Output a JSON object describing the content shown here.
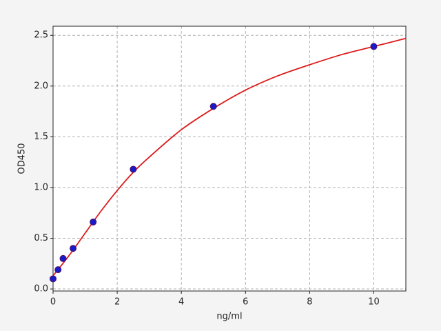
{
  "chart_data": {
    "type": "scatter",
    "xlabel": "ng/ml",
    "ylabel": "OD450",
    "xlim": [
      0,
      11
    ],
    "ylim": [
      -0.02,
      2.59
    ],
    "xticks": [
      0,
      2,
      4,
      6,
      8,
      10
    ],
    "yticks": [
      {
        "value": 0,
        "label": "0.0"
      },
      0.5,
      {
        "value": 1,
        "label": "1.0"
      },
      1.5,
      {
        "value": 2,
        "label": "2.0"
      },
      2.5
    ],
    "grid": true,
    "series": [
      {
        "type": "line",
        "color": "#dd1a1a",
        "x": [
          0,
          0.5,
          1,
          1.5,
          2,
          2.5,
          3,
          4,
          5,
          6,
          7,
          8,
          9,
          10,
          11
        ],
        "values": [
          0.13,
          0.33,
          0.55,
          0.77,
          0.97,
          1.15,
          1.3,
          1.57,
          1.78,
          1.96,
          2.1,
          2.21,
          2.31,
          2.39,
          2.47
        ]
      },
      {
        "type": "scatter",
        "color": "#1a1acc",
        "x": [
          0,
          0.156,
          0.3125,
          0.625,
          1.25,
          2.5,
          5,
          10
        ],
        "values": [
          0.1,
          0.19,
          0.3,
          0.4,
          0.66,
          1.18,
          1.8,
          2.39
        ]
      }
    ]
  }
}
